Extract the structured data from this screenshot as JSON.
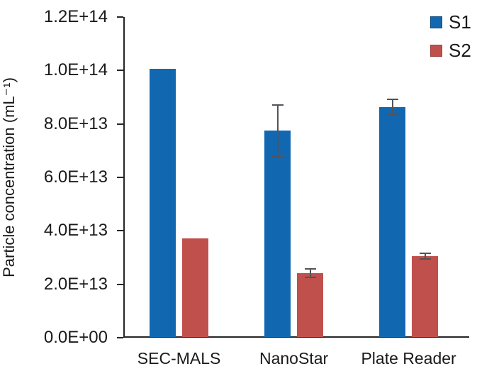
{
  "chart_data": {
    "type": "bar",
    "title": "",
    "categories": [
      "SEC-MALS",
      "NanoStar",
      "Plate Reader"
    ],
    "series": [
      {
        "name": "S1",
        "color": "#1168B1",
        "values": [
          100500000000000.0,
          77500000000000.0,
          86200000000000.0
        ],
        "errors": [
          0,
          9700000000000.0,
          2900000000000.0
        ]
      },
      {
        "name": "S2",
        "color": "#C0504B",
        "values": [
          37200000000000.0,
          24100000000000.0,
          30600000000000.0
        ],
        "errors": [
          0,
          1600000000000.0,
          1100000000000.0
        ]
      }
    ],
    "xlabel": "",
    "ylabel": "Particle concentration (mL⁻¹)",
    "ylim": [
      0,
      120000000000000.0
    ],
    "yticks": [
      "0.0E+00",
      "2.0E+13",
      "4.0E+13",
      "6.0E+13",
      "8.0E+13",
      "1.0E+14",
      "1.2E+14"
    ],
    "legend_position": "top-right",
    "grid": false,
    "error_bar_color": "#53535a",
    "axis_color": "#262626"
  }
}
